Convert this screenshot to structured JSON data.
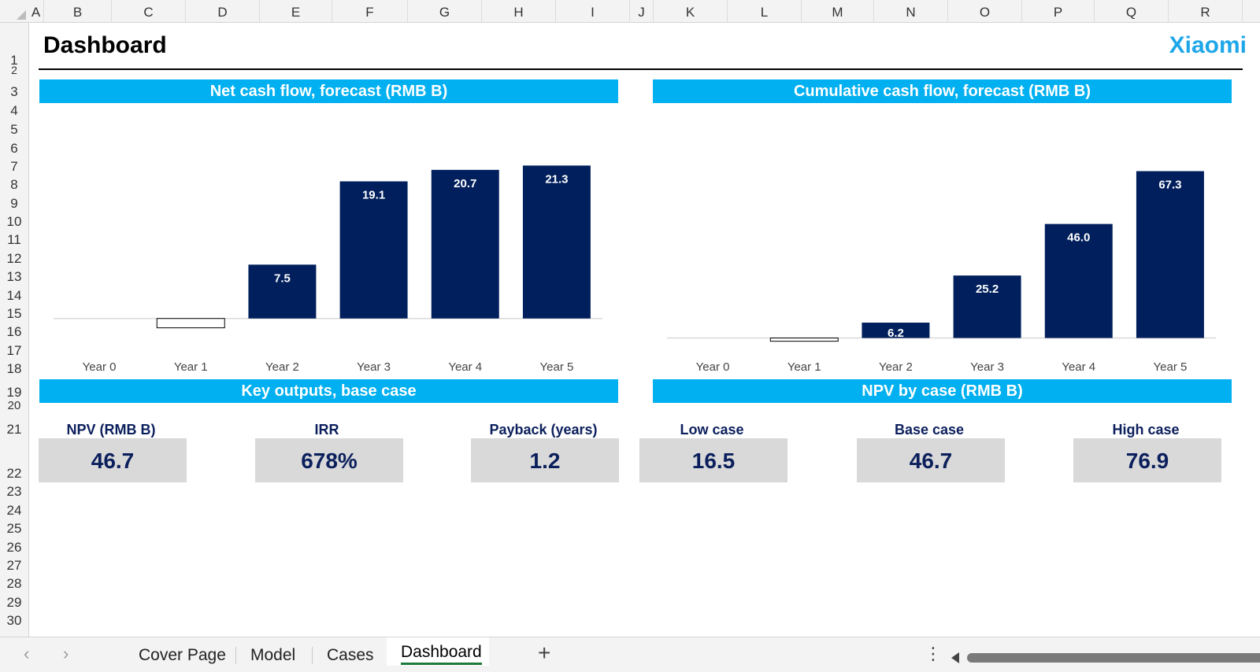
{
  "columns": [
    "A",
    "B",
    "C",
    "D",
    "E",
    "F",
    "G",
    "H",
    "I",
    "J",
    "K",
    "L",
    "M",
    "N",
    "O",
    "P",
    "Q",
    "R"
  ],
  "rows": [
    "1",
    "2",
    "3",
    "4",
    "5",
    "6",
    "7",
    "8",
    "9",
    "10",
    "11",
    "12",
    "13",
    "14",
    "15",
    "16",
    "17",
    "18",
    "19",
    "20",
    "21",
    "22",
    "23",
    "24",
    "25",
    "26",
    "27",
    "28",
    "29",
    "30"
  ],
  "dashboard": {
    "title": "Dashboard",
    "brand": "Xiaomi",
    "brand_color": "#1ea7e8",
    "banner_color": "#00b0f0",
    "bar_color": "#001f5c"
  },
  "chart_data": [
    {
      "type": "bar",
      "title": "Net cash flow, forecast (RMB B)",
      "categories": [
        "Year 0",
        "Year 1",
        "Year 2",
        "Year 3",
        "Year 4",
        "Year 5"
      ],
      "values": [
        0.0,
        -1.3,
        7.5,
        19.1,
        20.7,
        21.3
      ],
      "labels": [
        "",
        "",
        "7.5",
        "19.1",
        "20.7",
        "21.3"
      ],
      "ylim": [
        -2,
        22
      ],
      "grid": false,
      "legend": "none"
    },
    {
      "type": "bar",
      "title": "Cumulative cash flow, forecast (RMB B)",
      "categories": [
        "Year 0",
        "Year 1",
        "Year 2",
        "Year 3",
        "Year 4",
        "Year 5"
      ],
      "values": [
        0.0,
        -1.3,
        6.2,
        25.2,
        46.0,
        67.3
      ],
      "labels": [
        "",
        "",
        "6.2",
        "25.2",
        "46.0",
        "67.3"
      ],
      "ylim": [
        -3,
        70
      ],
      "grid": false,
      "legend": "none"
    }
  ],
  "key_outputs": {
    "title": "Key outputs, base case",
    "npv_label": "NPV (RMB B)",
    "npv_value": "46.7",
    "irr_label": "IRR",
    "irr_value": "678%",
    "payback_label": "Payback (years)",
    "payback_value": "1.2"
  },
  "npv_by_case": {
    "title": "NPV by case (RMB B)",
    "low_label": "Low case",
    "low_value": "16.5",
    "base_label": "Base case",
    "base_value": "46.7",
    "high_label": "High case",
    "high_value": "76.9"
  },
  "tabs": [
    "Cover Page",
    "Model",
    "Cases",
    "Dashboard"
  ],
  "active_tab": "Dashboard",
  "tab_nav": {
    "prev": "‹",
    "next": "›",
    "add": "+",
    "more": "⋮"
  }
}
